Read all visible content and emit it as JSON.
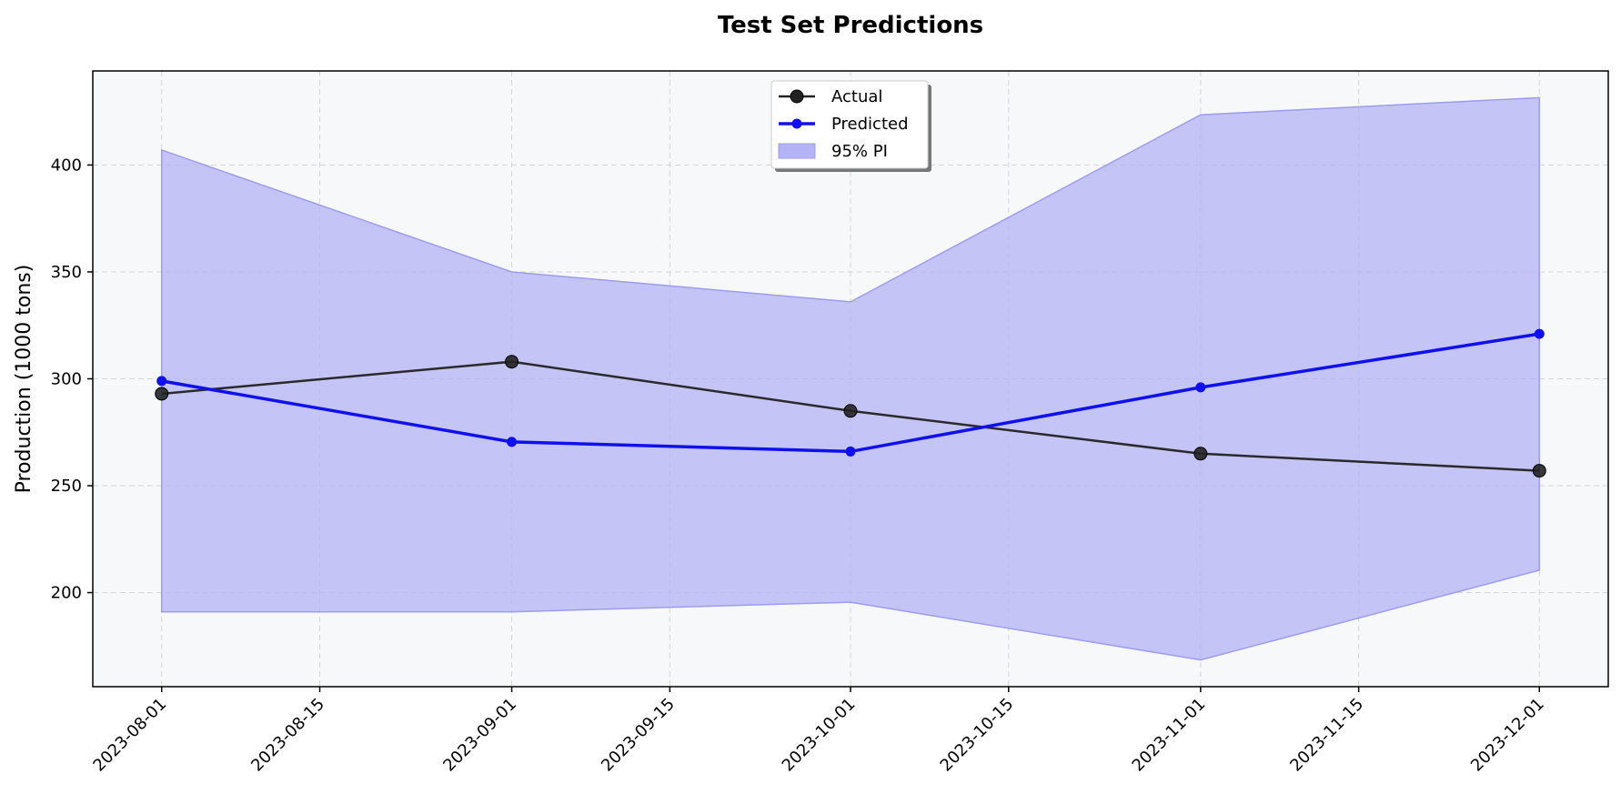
{
  "chart_data": {
    "type": "line",
    "title": "Test Set Predictions",
    "xlabel": "",
    "ylabel": "Production (1000 tons)",
    "x": [
      "2023-08-01",
      "2023-09-01",
      "2023-10-01",
      "2023-11-01",
      "2023-12-01"
    ],
    "xticks": [
      "2023-08-01",
      "2023-08-15",
      "2023-09-01",
      "2023-09-15",
      "2023-10-01",
      "2023-10-15",
      "2023-11-01",
      "2023-11-15",
      "2023-12-01"
    ],
    "yticks": [
      200,
      250,
      300,
      350,
      400
    ],
    "ylim": [
      156,
      444
    ],
    "grid": true,
    "legend_position": "top-center",
    "series": [
      {
        "name": "Actual",
        "values": [
          293,
          308,
          285,
          265,
          257
        ],
        "color": "#222222"
      },
      {
        "name": "Predicted",
        "values": [
          299,
          270.5,
          266,
          296,
          321
        ],
        "color": "#1010ee"
      }
    ],
    "band": {
      "name": "95% PI",
      "lower": [
        191,
        191,
        195.5,
        168.5,
        210.5
      ],
      "upper": [
        407,
        350,
        336,
        423.5,
        431.5
      ],
      "color": "#b3b3f5"
    }
  }
}
